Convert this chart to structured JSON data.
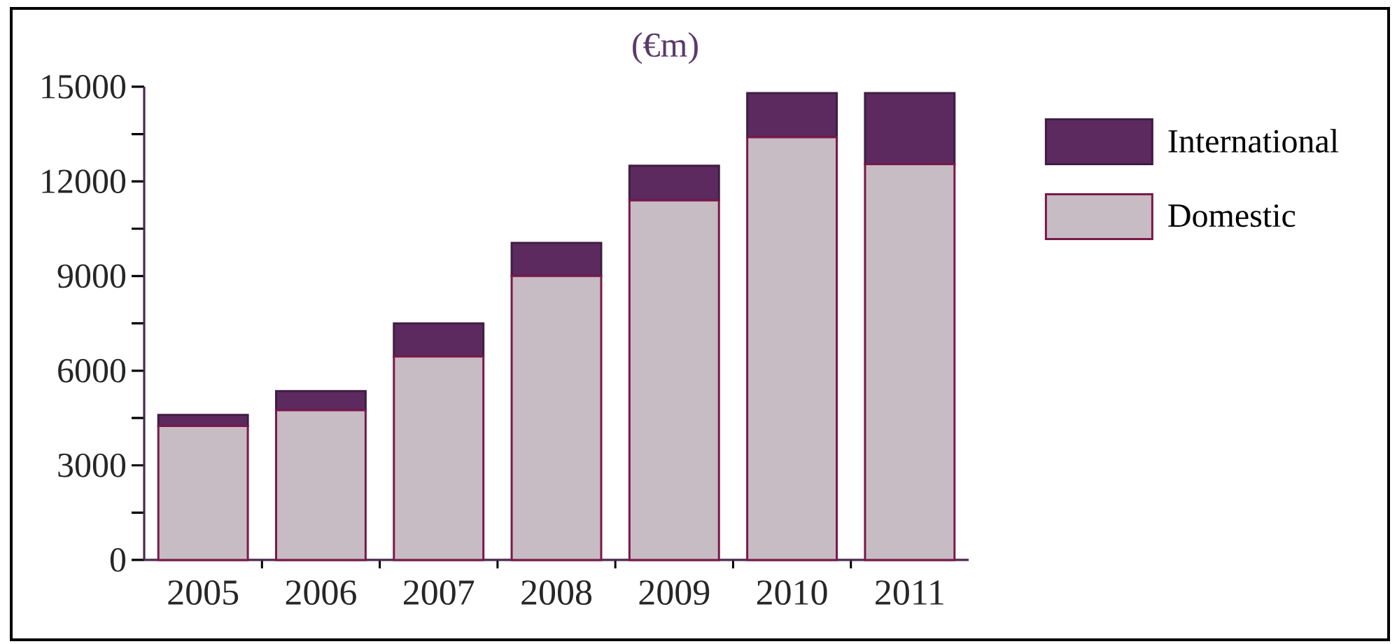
{
  "chart_data": {
    "type": "bar",
    "title": "(€m)",
    "categories": [
      "2005",
      "2006",
      "2007",
      "2008",
      "2009",
      "2010",
      "2011"
    ],
    "stacked": true,
    "series": [
      {
        "name": "Domestic",
        "color": "#c8bcc4",
        "values": [
          4250,
          4750,
          6450,
          9000,
          11400,
          13400,
          12550
        ]
      },
      {
        "name": "International",
        "color": "#5c2a5f",
        "values": [
          350,
          600,
          1050,
          1050,
          1100,
          1400,
          2250
        ]
      }
    ],
    "ylim": [
      0,
      15000
    ],
    "yticks": [
      0,
      {
        "value": 1500,
        "label": null
      },
      3000,
      {
        "value": 4500,
        "label": null
      },
      6000,
      {
        "value": 7500,
        "label": null
      },
      9000,
      {
        "value": 10500,
        "label": null
      },
      12000,
      {
        "value": 13500,
        "label": null
      },
      15000
    ],
    "legend": "top right"
  }
}
